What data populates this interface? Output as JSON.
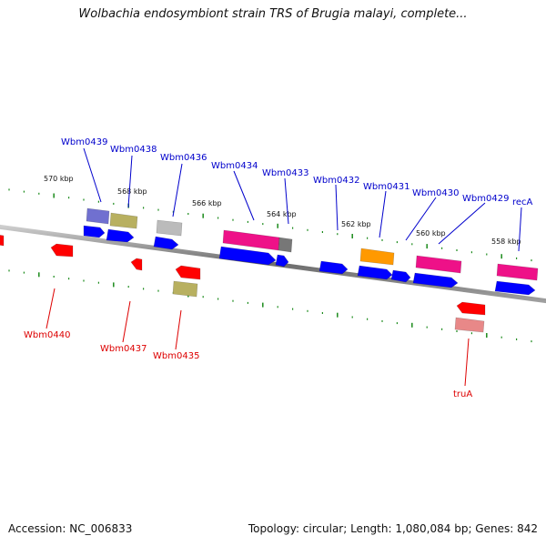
{
  "title": "Wolbachia endosymbiont strain TRS of Brugia malayi, complete...",
  "footer": {
    "accession": "Accession: NC_006833",
    "summary": "Topology: circular; Length: 1,080,084 bp; Genes: 842"
  },
  "colors": {
    "backbone": "#8a8a8a",
    "ticks": "#1a8a1a",
    "forward_label": "#0000cc",
    "reverse_label": "#dd0000",
    "cds_forward": "#0000ff",
    "cds_reverse": "#ff0000",
    "magenta": "#ee1188",
    "khaki": "#b8b060",
    "lavender": "#7070d0",
    "grey": "#bbbbbb",
    "darkgrey": "#777777",
    "orange": "#ff9900",
    "pink": "#e88888"
  },
  "tick_labels": [
    "570 kbp",
    "568 kbp",
    "566 kbp",
    "564 kbp",
    "562 kbp",
    "560 kbp",
    "558 kbp"
  ],
  "forward_labels": [
    "Wbm0439",
    "Wbm0438",
    "Wbm0436",
    "Wbm0434",
    "Wbm0433",
    "Wbm0432",
    "Wbm0431",
    "Wbm0430",
    "Wbm0429",
    "recA"
  ],
  "reverse_labels": [
    "Wbm0440",
    "Wbm0437",
    "Wbm0435",
    "truA"
  ]
}
